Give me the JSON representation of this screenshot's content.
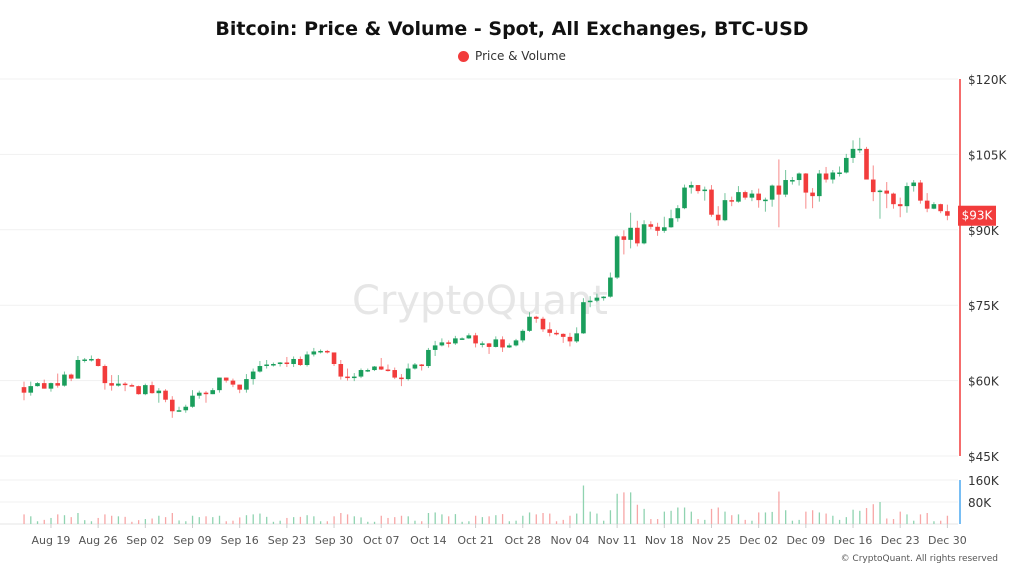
{
  "chart_data": {
    "type": "candlestick",
    "title": "Bitcoin: Price & Volume - Spot, All Exchanges, BTC-USD",
    "legend": [
      {
        "label": "Price & Volume",
        "color": "#f23c3c"
      }
    ],
    "legend_position": "top-center",
    "watermark": "CryptoQuant",
    "copyright": "© CryptoQuant. All rights reserved",
    "price_axis": {
      "ticks": [
        "$120K",
        "$105K",
        "$90K",
        "$75K",
        "$60K",
        "$45K"
      ],
      "tick_values": [
        120,
        105,
        90,
        75,
        60,
        45
      ],
      "range": [
        45,
        120
      ],
      "unit": "K USD"
    },
    "last_price_label": "$93K",
    "volume_axis": {
      "ticks": [
        "160K",
        "80K"
      ],
      "tick_values": [
        160,
        80
      ],
      "range": [
        0,
        160
      ],
      "unit": "K"
    },
    "x_ticks": [
      "Aug 19",
      "Aug 26",
      "Sep 02",
      "Sep 09",
      "Sep 16",
      "Sep 23",
      "Sep 30",
      "Oct 07",
      "Oct 14",
      "Oct 21",
      "Oct 28",
      "Nov 04",
      "Nov 11",
      "Nov 18",
      "Nov 25",
      "Dec 02",
      "Dec 09",
      "Dec 16",
      "Dec 23",
      "Dec 30"
    ],
    "x_tick_day_index": [
      4,
      11,
      18,
      25,
      32,
      39,
      46,
      53,
      60,
      67,
      74,
      81,
      88,
      95,
      102,
      109,
      116,
      123,
      130,
      137
    ],
    "first_date": "Aug 15",
    "colors": {
      "up": "#1a9e5c",
      "down": "#f23c3c",
      "up_volume": "#8fd3b0",
      "down_volume": "#f7a6a6",
      "axis_price": "#f23c3c",
      "axis_volume": "#4aa8f0"
    },
    "candles_ohlcv": [
      [
        58.7,
        59.8,
        56.1,
        57.6,
        35
      ],
      [
        57.6,
        59.8,
        57.0,
        58.9,
        28
      ],
      [
        58.9,
        59.7,
        58.8,
        59.5,
        10
      ],
      [
        59.5,
        60.2,
        58.4,
        58.4,
        15
      ],
      [
        58.4,
        59.6,
        57.8,
        59.5,
        22
      ],
      [
        59.5,
        61.4,
        58.6,
        59.0,
        35
      ],
      [
        59.0,
        61.8,
        58.8,
        61.2,
        32
      ],
      [
        61.2,
        61.4,
        59.9,
        60.4,
        25
      ],
      [
        60.4,
        64.9,
        60.4,
        64.1,
        40
      ],
      [
        64.1,
        64.5,
        63.6,
        64.2,
        14
      ],
      [
        64.2,
        65.0,
        63.8,
        64.3,
        10
      ],
      [
        64.3,
        64.5,
        62.8,
        62.9,
        22
      ],
      [
        62.9,
        63.2,
        58.2,
        59.5,
        35
      ],
      [
        59.5,
        61.1,
        58.0,
        59.0,
        30
      ],
      [
        59.0,
        61.1,
        58.8,
        59.4,
        28
      ],
      [
        59.4,
        59.7,
        57.9,
        59.1,
        26
      ],
      [
        59.1,
        59.4,
        58.8,
        58.9,
        8
      ],
      [
        58.9,
        59.0,
        57.2,
        57.3,
        14
      ],
      [
        57.3,
        59.4,
        57.1,
        59.1,
        18
      ],
      [
        59.1,
        59.8,
        57.4,
        57.5,
        20
      ],
      [
        57.5,
        58.5,
        55.6,
        58.0,
        30
      ],
      [
        58.0,
        58.3,
        55.7,
        56.2,
        25
      ],
      [
        56.2,
        56.9,
        52.6,
        53.9,
        40
      ],
      [
        53.9,
        54.8,
        53.8,
        54.1,
        13
      ],
      [
        54.1,
        55.2,
        53.6,
        54.8,
        10
      ],
      [
        54.8,
        58.1,
        54.6,
        57.0,
        30
      ],
      [
        57.0,
        58.0,
        56.4,
        57.6,
        25
      ],
      [
        57.6,
        57.9,
        55.6,
        57.3,
        28
      ],
      [
        57.3,
        58.5,
        57.3,
        58.1,
        25
      ],
      [
        58.1,
        60.6,
        57.6,
        60.6,
        30
      ],
      [
        60.6,
        60.6,
        59.6,
        60.0,
        10
      ],
      [
        60.0,
        60.4,
        58.7,
        59.2,
        12
      ],
      [
        59.2,
        59.2,
        57.5,
        58.2,
        24
      ],
      [
        58.2,
        61.3,
        57.6,
        60.3,
        32
      ],
      [
        60.3,
        62.4,
        59.2,
        61.8,
        35
      ],
      [
        61.8,
        63.9,
        61.6,
        62.9,
        38
      ],
      [
        62.9,
        64.1,
        62.4,
        63.2,
        26
      ],
      [
        63.2,
        63.6,
        62.8,
        63.3,
        8
      ],
      [
        63.3,
        63.7,
        62.8,
        63.6,
        12
      ],
      [
        63.6,
        64.7,
        62.7,
        63.3,
        22
      ],
      [
        63.3,
        64.8,
        62.7,
        64.3,
        25
      ],
      [
        64.3,
        64.8,
        62.9,
        63.1,
        26
      ],
      [
        63.1,
        65.8,
        62.8,
        65.2,
        32
      ],
      [
        65.2,
        66.5,
        64.8,
        65.8,
        28
      ],
      [
        65.8,
        66.2,
        65.4,
        65.9,
        10
      ],
      [
        65.9,
        66.1,
        65.4,
        65.6,
        10
      ],
      [
        65.6,
        65.6,
        62.9,
        63.3,
        28
      ],
      [
        63.3,
        64.1,
        60.2,
        60.8,
        40
      ],
      [
        60.8,
        62.4,
        60.0,
        60.6,
        35
      ],
      [
        60.6,
        61.5,
        59.9,
        60.8,
        28
      ],
      [
        60.8,
        62.4,
        60.5,
        62.1,
        24
      ],
      [
        62.1,
        62.4,
        61.7,
        62.1,
        8
      ],
      [
        62.1,
        62.9,
        61.9,
        62.8,
        8
      ],
      [
        62.8,
        64.5,
        62.1,
        62.2,
        30
      ],
      [
        62.2,
        63.2,
        61.8,
        62.1,
        22
      ],
      [
        62.1,
        62.6,
        60.3,
        60.6,
        25
      ],
      [
        60.6,
        61.3,
        58.9,
        60.3,
        30
      ],
      [
        60.3,
        63.4,
        60.0,
        62.4,
        28
      ],
      [
        62.4,
        63.5,
        62.2,
        63.2,
        12
      ],
      [
        63.2,
        63.3,
        62.0,
        62.9,
        10
      ],
      [
        62.9,
        66.5,
        62.5,
        66.1,
        40
      ],
      [
        66.1,
        67.9,
        64.9,
        67.0,
        42
      ],
      [
        67.0,
        68.4,
        66.8,
        67.6,
        35
      ],
      [
        67.6,
        68.0,
        66.6,
        67.4,
        28
      ],
      [
        67.4,
        68.9,
        67.1,
        68.4,
        36
      ],
      [
        68.4,
        68.6,
        68.1,
        68.4,
        8
      ],
      [
        68.4,
        69.4,
        68.3,
        69.0,
        10
      ],
      [
        69.0,
        69.5,
        66.6,
        67.4,
        30
      ],
      [
        67.4,
        67.8,
        66.6,
        67.4,
        25
      ],
      [
        67.4,
        67.5,
        65.3,
        66.7,
        28
      ],
      [
        66.7,
        68.8,
        66.6,
        68.2,
        32
      ],
      [
        68.2,
        68.8,
        65.7,
        66.6,
        36
      ],
      [
        66.6,
        67.4,
        66.5,
        67.0,
        10
      ],
      [
        67.0,
        68.3,
        66.8,
        68.0,
        12
      ],
      [
        68.0,
        70.2,
        67.6,
        69.9,
        30
      ],
      [
        69.9,
        73.6,
        69.7,
        72.7,
        42
      ],
      [
        72.7,
        72.9,
        71.5,
        72.3,
        35
      ],
      [
        72.3,
        72.7,
        69.7,
        70.2,
        40
      ],
      [
        70.2,
        71.6,
        68.8,
        69.5,
        38
      ],
      [
        69.5,
        70.0,
        69.0,
        69.3,
        10
      ],
      [
        69.3,
        69.4,
        67.5,
        68.7,
        15
      ],
      [
        68.7,
        69.5,
        66.8,
        67.8,
        30
      ],
      [
        67.8,
        70.6,
        67.5,
        69.4,
        38
      ],
      [
        69.4,
        76.4,
        69.3,
        75.6,
        140
      ],
      [
        75.6,
        76.8,
        74.6,
        75.9,
        45
      ],
      [
        75.9,
        77.3,
        75.6,
        76.5,
        38
      ],
      [
        76.5,
        76.8,
        75.9,
        76.7,
        12
      ],
      [
        76.7,
        81.5,
        76.5,
        80.5,
        50
      ],
      [
        80.5,
        89.0,
        80.2,
        88.7,
        110
      ],
      [
        88.7,
        89.9,
        85.1,
        88.0,
        115
      ],
      [
        88.0,
        93.4,
        86.3,
        90.4,
        115
      ],
      [
        90.4,
        91.8,
        86.7,
        87.3,
        70
      ],
      [
        87.3,
        91.9,
        87.1,
        91.1,
        55
      ],
      [
        91.1,
        91.7,
        90.1,
        90.6,
        18
      ],
      [
        90.6,
        91.4,
        88.8,
        89.8,
        18
      ],
      [
        89.8,
        92.6,
        89.4,
        90.5,
        45
      ],
      [
        90.5,
        94.0,
        90.4,
        92.3,
        48
      ],
      [
        92.3,
        94.9,
        91.6,
        94.3,
        60
      ],
      [
        94.3,
        99.0,
        94.1,
        98.4,
        60
      ],
      [
        98.4,
        99.6,
        97.2,
        98.9,
        45
      ],
      [
        98.9,
        98.9,
        97.2,
        97.7,
        18
      ],
      [
        97.7,
        98.6,
        95.8,
        98.0,
        15
      ],
      [
        98.0,
        98.9,
        92.6,
        93.0,
        55
      ],
      [
        93.0,
        94.7,
        90.8,
        91.9,
        60
      ],
      [
        91.9,
        97.3,
        91.7,
        95.9,
        45
      ],
      [
        95.9,
        96.6,
        94.7,
        95.6,
        32
      ],
      [
        95.6,
        98.7,
        95.4,
        97.5,
        35
      ],
      [
        97.5,
        97.8,
        96.0,
        96.4,
        15
      ],
      [
        96.4,
        97.9,
        95.7,
        97.2,
        12
      ],
      [
        97.2,
        98.2,
        94.4,
        95.9,
        42
      ],
      [
        95.9,
        96.4,
        93.6,
        96.0,
        42
      ],
      [
        96.0,
        99.0,
        94.6,
        98.8,
        44
      ],
      [
        98.8,
        104.0,
        90.5,
        97.0,
        118
      ],
      [
        97.0,
        101.9,
        96.5,
        99.9,
        50
      ],
      [
        99.9,
        100.5,
        99.0,
        99.9,
        12
      ],
      [
        99.9,
        101.4,
        98.8,
        101.2,
        15
      ],
      [
        101.2,
        101.3,
        94.2,
        97.4,
        45
      ],
      [
        97.4,
        98.3,
        94.3,
        96.7,
        50
      ],
      [
        96.7,
        101.9,
        95.6,
        101.2,
        42
      ],
      [
        101.2,
        102.5,
        99.4,
        100.0,
        38
      ],
      [
        100.0,
        101.9,
        99.2,
        101.4,
        30
      ],
      [
        101.4,
        102.6,
        100.6,
        101.4,
        15
      ],
      [
        101.4,
        105.1,
        101.2,
        104.3,
        25
      ],
      [
        104.3,
        107.8,
        103.3,
        106.1,
        52
      ],
      [
        106.1,
        108.3,
        105.3,
        106.1,
        48
      ],
      [
        106.1,
        106.5,
        100.0,
        100.0,
        58
      ],
      [
        100.0,
        102.8,
        95.7,
        97.5,
        72
      ],
      [
        97.5,
        98.0,
        92.2,
        97.8,
        80
      ],
      [
        97.8,
        99.5,
        94.3,
        97.2,
        20
      ],
      [
        97.2,
        97.4,
        94.2,
        95.1,
        18
      ],
      [
        95.1,
        96.4,
        92.5,
        94.7,
        45
      ],
      [
        94.7,
        99.4,
        93.4,
        98.7,
        35
      ],
      [
        98.7,
        99.9,
        97.6,
        99.4,
        12
      ],
      [
        99.4,
        99.9,
        95.2,
        95.8,
        35
      ],
      [
        95.8,
        97.3,
        93.5,
        94.2,
        40
      ],
      [
        94.2,
        95.5,
        94.1,
        95.1,
        10
      ],
      [
        95.1,
        95.2,
        93.3,
        93.7,
        12
      ],
      [
        93.7,
        95.0,
        91.9,
        92.8,
        30
      ]
    ]
  }
}
